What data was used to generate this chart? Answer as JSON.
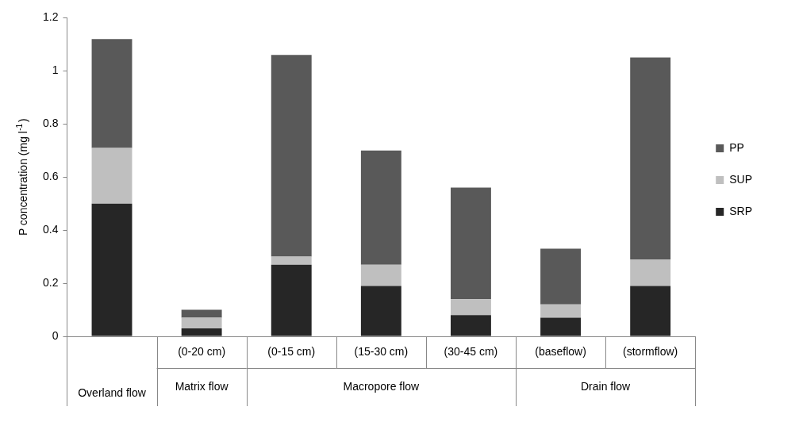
{
  "chart_data": {
    "type": "bar",
    "stacked": true,
    "ylabel": "P concentration (mg l$^{-1}$)",
    "categories": [
      null,
      "(0-20 cm)",
      "(0-15 cm)",
      "(15-30 cm)",
      "(30-45 cm)",
      "(baseflow)",
      "(stormflow)"
    ],
    "series": [
      {
        "name": "SRP",
        "color": "#262626",
        "values": [
          0.5,
          0.03,
          0.27,
          0.19,
          0.08,
          0.07,
          0.19
        ]
      },
      {
        "name": "SUP",
        "color": "#bfbfbf",
        "values": [
          0.21,
          0.04,
          0.03,
          0.08,
          0.06,
          0.05,
          0.1
        ]
      },
      {
        "name": "PP",
        "color": "#595959",
        "values": [
          0.41,
          0.03,
          0.76,
          0.43,
          0.42,
          0.21,
          0.76
        ]
      }
    ],
    "ylim": [
      0,
      1.2
    ],
    "yticks": [
      0,
      0.2,
      0.4,
      0.6,
      0.8,
      1,
      1.2
    ],
    "grid": false,
    "legend": "right",
    "annotations": [
      "Overland flow",
      "Matrix flow",
      "Macropore flow",
      "Drain flow"
    ]
  }
}
